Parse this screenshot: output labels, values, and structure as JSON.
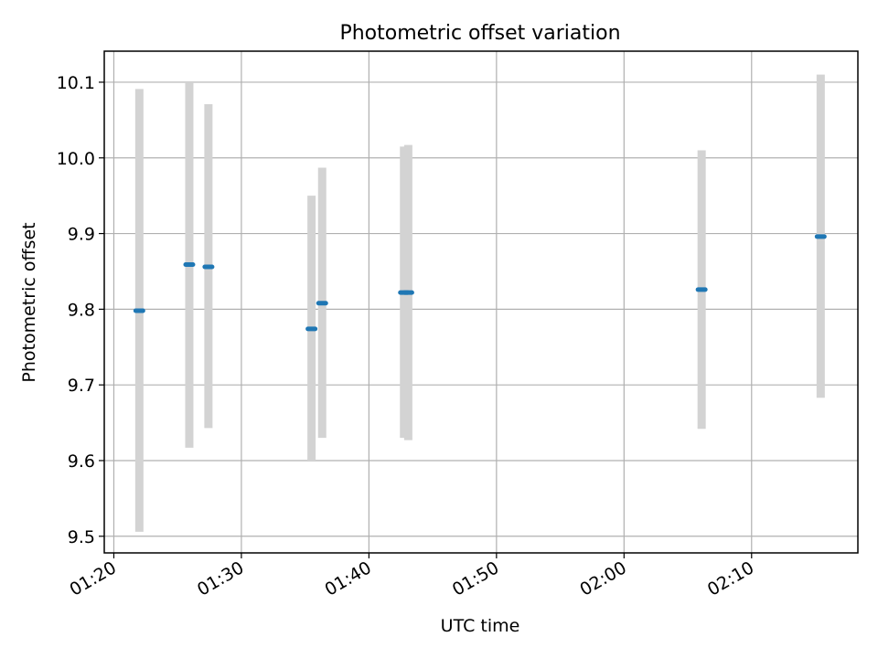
{
  "chart_data": {
    "type": "scatter",
    "title": "Photometric offset variation",
    "xlabel": "UTC time",
    "ylabel": "Photometric offset",
    "x_ticks": [
      "01:20",
      "01:30",
      "01:40",
      "01:50",
      "02:00",
      "02:10"
    ],
    "y_ticks": [
      "9.5",
      "9.6",
      "9.7",
      "9.8",
      "9.9",
      "10.0",
      "10.1"
    ],
    "xlim": [
      "01:19:15",
      "02:18:20"
    ],
    "ylim": [
      9.478,
      10.141
    ],
    "grid": true,
    "series": [
      {
        "x": [
          "01:22:00",
          "01:25:55",
          "01:27:25",
          "01:35:30",
          "01:36:20",
          "01:42:45",
          "01:43:05",
          "02:06:05",
          "02:15:25"
        ],
        "y": [
          9.798,
          9.859,
          9.856,
          9.774,
          9.808,
          9.822,
          9.822,
          9.826,
          9.896
        ],
        "err_low": [
          9.506,
          9.617,
          9.643,
          9.6,
          9.63,
          9.63,
          9.627,
          9.642,
          9.683
        ],
        "err_high": [
          10.091,
          10.1,
          10.071,
          9.95,
          9.987,
          10.015,
          10.017,
          10.01,
          10.11
        ]
      }
    ],
    "colors": {
      "points": "#1f77b4",
      "errorbars": "#d3d3d3",
      "grid": "#b0b0b0"
    }
  }
}
